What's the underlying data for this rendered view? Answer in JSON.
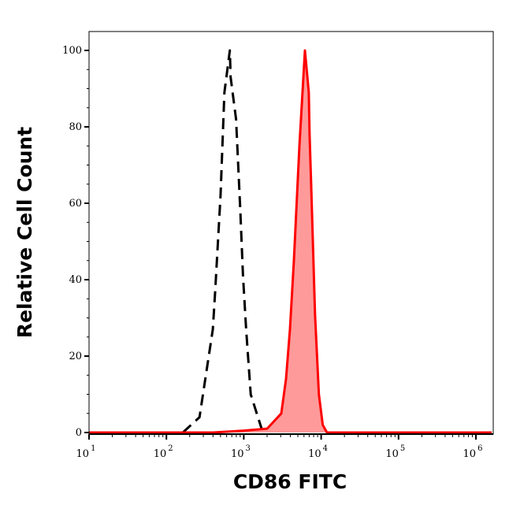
{
  "chart_data": {
    "type": "area",
    "title": "",
    "xlabel": "CD86 FITC",
    "ylabel": "Relative Cell Count",
    "xscale": "log",
    "xlim": [
      10,
      1600000
    ],
    "ylim": [
      0,
      105
    ],
    "grid": false,
    "x_ticks": [
      {
        "base": "10",
        "exp": "1",
        "value": 10
      },
      {
        "base": "10",
        "exp": "2",
        "value": 100
      },
      {
        "base": "10",
        "exp": "3",
        "value": 1000
      },
      {
        "base": "10",
        "exp": "4",
        "value": 10000
      },
      {
        "base": "10",
        "exp": "5",
        "value": 100000
      },
      {
        "base": "10",
        "exp": "6",
        "value": 1000000
      }
    ],
    "y_ticks": [
      "0",
      "20",
      "40",
      "60",
      "80",
      "100"
    ],
    "series": [
      {
        "style": "dashed",
        "color": "#000000",
        "filled": false,
        "x": [
          163,
          268,
          398,
          427,
          501,
          562,
          661,
          676,
          794,
          902,
          977,
          1072,
          1230,
          1700
        ],
        "y": [
          0,
          4,
          27,
          37,
          62,
          89,
          100,
          93,
          82,
          58,
          41,
          27,
          10,
          1
        ]
      },
      {
        "style": "solid",
        "color": "#ff0000",
        "fill": "#ff9a9a",
        "filled": true,
        "x": [
          10,
          400,
          1000,
          2000,
          3055,
          3515,
          3950,
          4446,
          5240,
          6170,
          6920,
          7080,
          7420,
          8320,
          9340,
          10470,
          11880,
          1600000
        ],
        "y": [
          0,
          0,
          0.5,
          1,
          5,
          14,
          27,
          45,
          75,
          100,
          89,
          78,
          65,
          31,
          10,
          2,
          0,
          0
        ]
      }
    ]
  }
}
